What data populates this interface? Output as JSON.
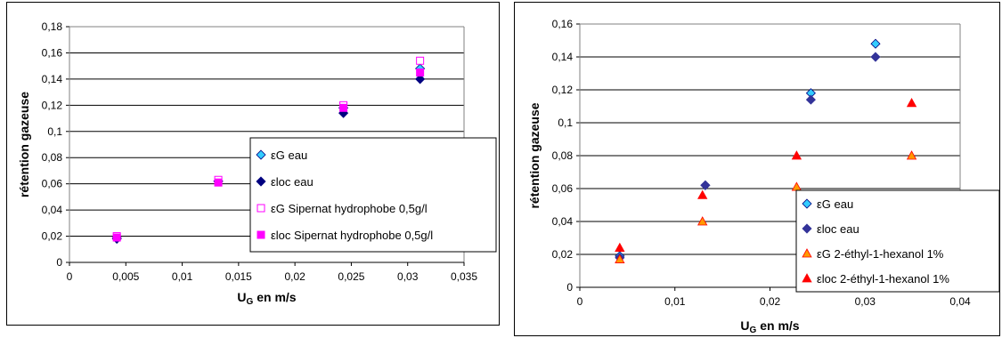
{
  "chart_data": [
    {
      "type": "scatter",
      "xlabel": {
        "main": "U",
        "sub": "G",
        "rest": " en m/s"
      },
      "ylabel": "rétention gazeuse",
      "xlim": [
        0,
        0.035
      ],
      "ylim": [
        0,
        0.18
      ],
      "x_ticks": [
        "0",
        "0,005",
        "0,01",
        "0,015",
        "0,02",
        "0,025",
        "0,03",
        "0,035"
      ],
      "y_ticks": [
        "0",
        "0,02",
        "0,04",
        "0,06",
        "0,08",
        "0,1",
        "0,12",
        "0,14",
        "0,16",
        "0,18"
      ],
      "grid": "horizontal",
      "legend_position": "right",
      "series": [
        {
          "name": "εG eau",
          "marker": "diamond",
          "color": "#33CCFF",
          "stroke": "#000080",
          "filled": true,
          "x": [
            0.0042,
            0.0132,
            0.0243,
            0.0311
          ],
          "y": [
            0.019,
            0.062,
            0.118,
            0.148
          ]
        },
        {
          "name": "εloc eau",
          "marker": "diamond",
          "color": "#000080",
          "stroke": "#000080",
          "filled": true,
          "x": [
            0.0042,
            0.0132,
            0.0243,
            0.0311
          ],
          "y": [
            0.018,
            0.062,
            0.114,
            0.14
          ]
        },
        {
          "name": "εG Sipernat hydrophobe 0,5g/l",
          "marker": "square",
          "color": "#FFFFFF",
          "stroke": "#FF00FF",
          "filled": false,
          "x": [
            0.0042,
            0.0132,
            0.0243,
            0.0311
          ],
          "y": [
            0.02,
            0.063,
            0.12,
            0.154
          ]
        },
        {
          "name": "εloc Sipernat hydrophobe 0,5g/l",
          "marker": "square",
          "color": "#FF00FF",
          "stroke": "#FF00FF",
          "filled": true,
          "x": [
            0.0042,
            0.0132,
            0.0243,
            0.0311
          ],
          "y": [
            0.019,
            0.061,
            0.118,
            0.145
          ]
        }
      ]
    },
    {
      "type": "scatter",
      "xlabel": {
        "main": "U",
        "sub": "G",
        "rest": " en m/s"
      },
      "ylabel": "rétention gazeuse",
      "xlim": [
        0,
        0.04
      ],
      "ylim": [
        0,
        0.16
      ],
      "x_ticks": [
        "0",
        "0,01",
        "0,02",
        "0,03",
        "0,04"
      ],
      "y_ticks": [
        "0",
        "0,02",
        "0,04",
        "0,06",
        "0,08",
        "0,1",
        "0,12",
        "0,14",
        "0,16"
      ],
      "grid": "horizontal",
      "legend_position": "bottom-right",
      "series": [
        {
          "name": "εG eau",
          "marker": "diamond",
          "color": "#33CCFF",
          "stroke": "#000080",
          "filled": true,
          "x": [
            0.0042,
            0.0132,
            0.0243,
            0.0311
          ],
          "y": [
            0.019,
            0.062,
            0.118,
            0.148
          ]
        },
        {
          "name": "εloc eau",
          "marker": "diamond",
          "color": "#333399",
          "stroke": "#333399",
          "filled": true,
          "x": [
            0.0042,
            0.0132,
            0.0243,
            0.0311
          ],
          "y": [
            0.018,
            0.062,
            0.114,
            0.14
          ]
        },
        {
          "name": "εG 2-éthyl-1-hexanol 1%",
          "marker": "triangle",
          "color": "#FF9900",
          "stroke": "#FF0000",
          "filled": true,
          "x": [
            0.0042,
            0.0129,
            0.0228,
            0.0349
          ],
          "y": [
            0.017,
            0.04,
            0.061,
            0.08
          ]
        },
        {
          "name": "εloc 2-éthyl-1-hexanol 1%",
          "marker": "triangle",
          "color": "#FF0000",
          "stroke": "#FF0000",
          "filled": true,
          "x": [
            0.0042,
            0.0129,
            0.0228,
            0.0349
          ],
          "y": [
            0.024,
            0.056,
            0.08,
            0.112
          ]
        }
      ]
    }
  ]
}
